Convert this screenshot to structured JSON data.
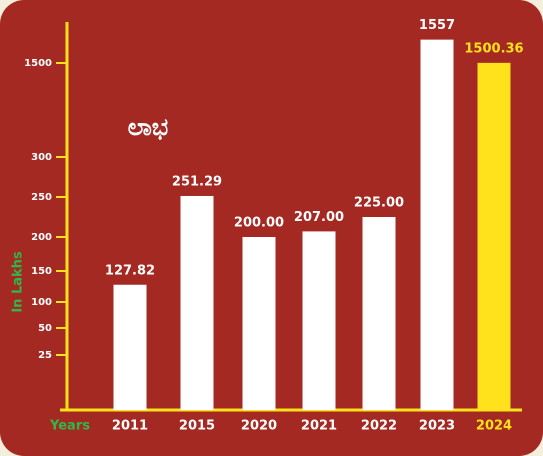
{
  "chart_data": {
    "type": "bar",
    "title": "ಲಾಭ",
    "ylabel": "In Lakhs",
    "xlabel": "Years",
    "categories": [
      "2011",
      "2015",
      "2020",
      "2021",
      "2022",
      "2023",
      "2024"
    ],
    "values": [
      127.82,
      251.29,
      200,
      207,
      225,
      1557,
      1500.36
    ],
    "value_labels": [
      "127.82",
      "251.29",
      "200.00",
      "207.00",
      "225.00",
      "1557",
      "1500.36"
    ],
    "colors": [
      "#ffffff",
      "#ffffff",
      "#ffffff",
      "#ffffff",
      "#ffffff",
      "#ffffff",
      "#ffe11c"
    ],
    "ylim": [
      0,
      1600
    ],
    "yticks": [
      25,
      50,
      100,
      150,
      200,
      250,
      300,
      1500
    ]
  }
}
